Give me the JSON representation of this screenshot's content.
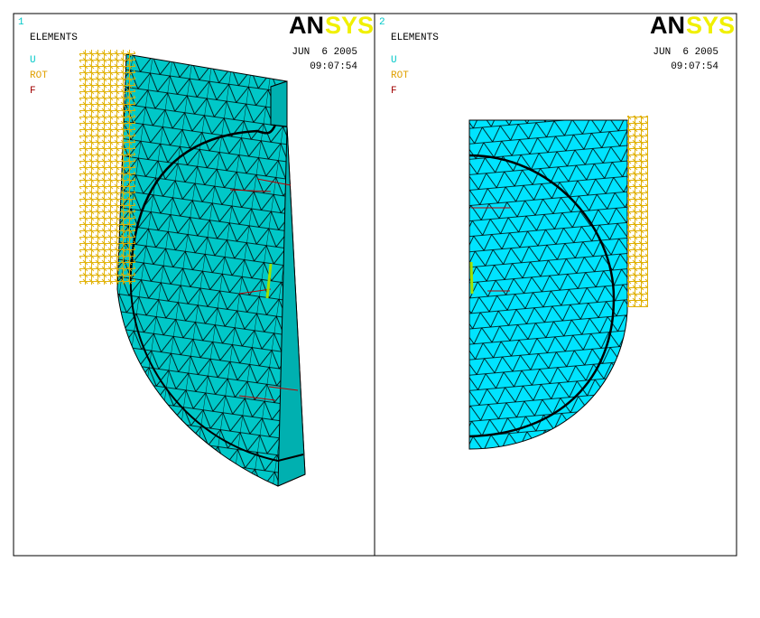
{
  "viewports": [
    {
      "number": "1",
      "title": "ELEMENTS",
      "legend": [
        "U",
        "ROT",
        "F"
      ],
      "logo": {
        "an": "AN",
        "sys": "SYS"
      },
      "date": "JUN  6 2005",
      "time": "09:07:54"
    },
    {
      "number": "2",
      "title": "ELEMENTS",
      "legend": [
        "U",
        "ROT",
        "F"
      ],
      "logo": {
        "an": "AN",
        "sys": "SYS"
      },
      "date": "JUN  6 2005",
      "time": "09:07:54"
    }
  ]
}
